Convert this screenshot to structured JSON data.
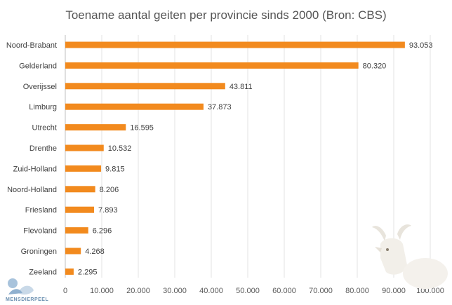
{
  "chart_data": {
    "type": "bar",
    "orientation": "horizontal",
    "title": "Toename aantal geiten per provincie sinds 2000 (Bron: CBS)",
    "categories": [
      "Noord-Brabant",
      "Gelderland",
      "Overijssel",
      "Limburg",
      "Utrecht",
      "Drenthe",
      "Zuid-Holland",
      "Noord-Holland",
      "Friesland",
      "Flevoland",
      "Groningen",
      "Zeeland"
    ],
    "values": [
      93053,
      80320,
      43811,
      37873,
      16595,
      10532,
      9815,
      8206,
      7893,
      6296,
      4268,
      2295
    ],
    "value_labels": [
      "93.053",
      "80.320",
      "43.811",
      "37.873",
      "16.595",
      "10.532",
      "9.815",
      "8.206",
      "7.893",
      "6.296",
      "4.268",
      "2.295"
    ],
    "xlim": [
      0,
      100000
    ],
    "x_ticks": [
      0,
      10000,
      20000,
      30000,
      40000,
      50000,
      60000,
      70000,
      80000,
      90000,
      100000
    ],
    "x_tick_labels": [
      "0",
      "10.000",
      "20.000",
      "30.000",
      "40.000",
      "50.000",
      "60.000",
      "70.000",
      "80.000",
      "90.000",
      "100.000"
    ],
    "grid": true,
    "bar_color": "#f28a1e"
  },
  "logo": {
    "text": "MENSDIERPEEL"
  },
  "goat_icon": "goat-icon"
}
